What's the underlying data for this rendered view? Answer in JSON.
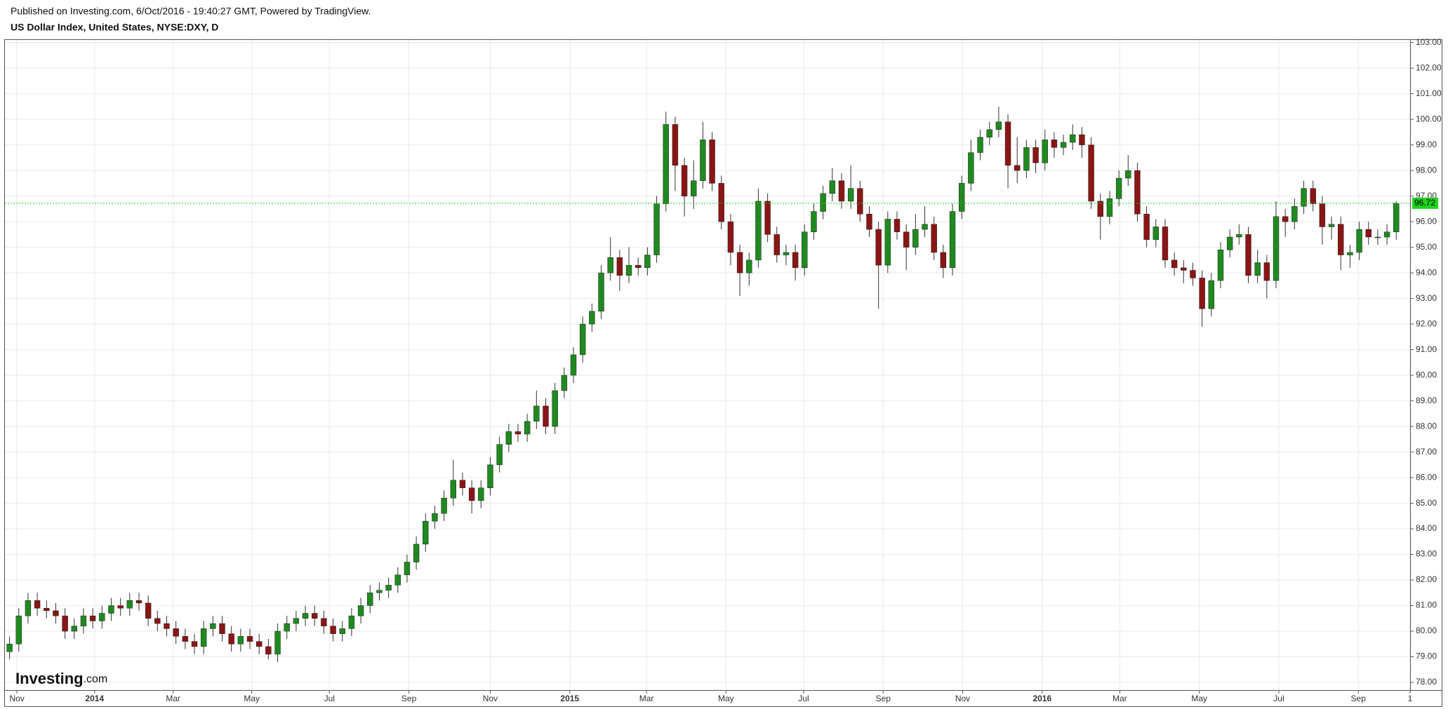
{
  "header": {
    "published": "Published on Investing.com, 6/Oct/2016 - 19:40:27 GMT, Powered by TradingView.",
    "title": "US Dollar Index, United States, NYSE:DXY, D"
  },
  "watermark": {
    "name": "Investing",
    "suffix": ".com"
  },
  "chart_data": {
    "type": "candlestick",
    "up_color": "#1f8a1f",
    "down_color": "#8b1515",
    "last_price_color": "#1ed21e",
    "grid": true,
    "xlim": [
      0,
      152
    ],
    "ylim": [
      77.7,
      103.1
    ],
    "xticks": [
      {
        "value": 1.3,
        "label": "Nov"
      },
      {
        "value": 9.7,
        "label": "2014"
      },
      {
        "value": 18.2,
        "label": "Mar"
      },
      {
        "value": 26.7,
        "label": "May"
      },
      {
        "value": 35.1,
        "label": "Jul"
      },
      {
        "value": 43.7,
        "label": "Sep"
      },
      {
        "value": 52.5,
        "label": "Nov"
      },
      {
        "value": 61.1,
        "label": "2015"
      },
      {
        "value": 69.4,
        "label": "Mar"
      },
      {
        "value": 78.0,
        "label": "May"
      },
      {
        "value": 86.4,
        "label": "Jul"
      },
      {
        "value": 95.0,
        "label": "Sep"
      },
      {
        "value": 103.6,
        "label": "Nov"
      },
      {
        "value": 112.2,
        "label": "2016"
      },
      {
        "value": 120.6,
        "label": "Mar"
      },
      {
        "value": 129.2,
        "label": "May"
      },
      {
        "value": 137.8,
        "label": "Jul"
      },
      {
        "value": 146.4,
        "label": "Sep"
      },
      {
        "value": 152.0,
        "label": "1"
      }
    ],
    "yticks": [
      {
        "value": 78,
        "label": "78.00"
      },
      {
        "value": 79,
        "label": "79.00"
      },
      {
        "value": 80,
        "label": "80.00"
      },
      {
        "value": 81,
        "label": "81.00"
      },
      {
        "value": 82,
        "label": "82.00"
      },
      {
        "value": 83,
        "label": "83.00"
      },
      {
        "value": 84,
        "label": "84.00"
      },
      {
        "value": 85,
        "label": "85.00"
      },
      {
        "value": 86,
        "label": "86.00"
      },
      {
        "value": 87,
        "label": "87.00"
      },
      {
        "value": 88,
        "label": "88.00"
      },
      {
        "value": 89,
        "label": "89.00"
      },
      {
        "value": 90,
        "label": "90.00"
      },
      {
        "value": 91,
        "label": "91.00"
      },
      {
        "value": 92,
        "label": "92.00"
      },
      {
        "value": 93,
        "label": "93.00"
      },
      {
        "value": 94,
        "label": "94.00"
      },
      {
        "value": 95,
        "label": "95.00"
      },
      {
        "value": 96,
        "label": "96.00"
      },
      {
        "value": 97,
        "label": "97.00"
      },
      {
        "value": 98,
        "label": "98.00"
      },
      {
        "value": 99,
        "label": "99.00"
      },
      {
        "value": 100,
        "label": "100.00"
      },
      {
        "value": 101,
        "label": "101.00"
      },
      {
        "value": 102,
        "label": "102.00"
      },
      {
        "value": 103,
        "label": "103.00"
      }
    ],
    "open": [
      79.2,
      79.5,
      80.6,
      81.2,
      80.9,
      80.8,
      80.6,
      80.0,
      80.2,
      80.6,
      80.4,
      80.7,
      81.0,
      80.9,
      81.2,
      81.1,
      80.5,
      80.3,
      80.1,
      79.8,
      79.6,
      79.4,
      80.1,
      80.3,
      79.9,
      79.5,
      79.8,
      79.6,
      79.4,
      79.1,
      80.0,
      80.3,
      80.5,
      80.7,
      80.5,
      80.2,
      79.9,
      80.1,
      80.6,
      81.0,
      81.5,
      81.6,
      81.8,
      82.2,
      82.7,
      83.4,
      84.3,
      84.6,
      85.2,
      85.9,
      85.6,
      85.1,
      85.6,
      86.5,
      87.3,
      87.8,
      87.7,
      88.2,
      88.8,
      88.0,
      89.4,
      90.0,
      90.8,
      92.0,
      92.5,
      94.0,
      94.6,
      93.9,
      94.3,
      94.2,
      94.7,
      96.7,
      99.8,
      98.2,
      97.0,
      97.6,
      99.2,
      97.5,
      96.0,
      94.8,
      94.0,
      94.5,
      96.8,
      95.5,
      94.7,
      94.8,
      94.2,
      95.6,
      96.4,
      97.1,
      97.6,
      96.8,
      97.3,
      96.3,
      95.7,
      94.3,
      96.1,
      95.6,
      95.0,
      95.7,
      95.9,
      94.8,
      94.2,
      96.4,
      97.5,
      98.7,
      99.3,
      99.6,
      99.9,
      98.2,
      98.0,
      98.9,
      98.3,
      99.2,
      98.9,
      99.1,
      99.4,
      99.0,
      96.8,
      96.2,
      96.9,
      97.7,
      98.0,
      96.3,
      95.3,
      95.8,
      94.5,
      94.2,
      94.1,
      93.8,
      92.6,
      93.7,
      94.9,
      95.4,
      95.5,
      93.9,
      94.4,
      93.7,
      96.2,
      96.0,
      96.6,
      97.3,
      96.7,
      95.8,
      95.9,
      94.7,
      94.8,
      95.7,
      95.4,
      95.4,
      95.6
    ],
    "high": [
      79.8,
      80.9,
      81.5,
      81.5,
      81.2,
      81.1,
      80.9,
      80.5,
      80.9,
      80.9,
      81.0,
      81.3,
      81.3,
      81.5,
      81.5,
      81.4,
      80.8,
      80.6,
      80.4,
      80.1,
      79.9,
      80.4,
      80.6,
      80.6,
      80.2,
      80.1,
      80.1,
      79.9,
      79.7,
      80.3,
      80.6,
      80.8,
      81.0,
      81.0,
      80.8,
      80.5,
      80.4,
      80.9,
      81.3,
      81.8,
      81.9,
      82.1,
      82.5,
      83.0,
      83.7,
      84.6,
      84.9,
      85.5,
      86.7,
      86.2,
      85.9,
      85.9,
      86.8,
      87.6,
      88.1,
      88.1,
      88.5,
      89.4,
      89.1,
      89.7,
      90.3,
      91.1,
      92.3,
      92.8,
      94.3,
      95.4,
      94.9,
      95.0,
      94.6,
      95.0,
      97.0,
      100.3,
      100.1,
      98.5,
      98.4,
      99.9,
      99.5,
      97.8,
      96.3,
      95.1,
      94.8,
      97.3,
      97.1,
      95.8,
      95.1,
      95.1,
      95.9,
      96.7,
      97.4,
      98.1,
      97.9,
      98.2,
      97.6,
      96.6,
      96.0,
      96.4,
      96.4,
      95.9,
      96.3,
      96.6,
      96.2,
      95.1,
      96.7,
      97.8,
      99.2,
      99.6,
      99.9,
      100.5,
      100.2,
      99.3,
      99.2,
      99.2,
      99.6,
      99.5,
      99.4,
      99.8,
      99.7,
      99.3,
      97.1,
      97.2,
      98.0,
      98.6,
      98.3,
      96.6,
      96.1,
      96.1,
      94.8,
      94.5,
      94.4,
      94.1,
      94.0,
      95.2,
      95.7,
      95.9,
      95.8,
      94.9,
      94.7,
      96.8,
      96.5,
      96.9,
      97.6,
      97.6,
      97.0,
      96.2,
      96.2,
      95.1,
      96.0,
      96.0,
      95.7,
      95.9,
      96.8
    ],
    "low": [
      78.9,
      79.2,
      80.3,
      80.6,
      80.5,
      80.3,
      79.7,
      79.7,
      79.9,
      80.1,
      80.1,
      80.4,
      80.6,
      80.6,
      80.8,
      80.2,
      80.0,
      79.8,
      79.5,
      79.3,
      79.1,
      79.1,
      79.8,
      79.6,
      79.2,
      79.2,
      79.3,
      79.1,
      78.9,
      78.8,
      79.7,
      80.0,
      80.2,
      80.2,
      79.9,
      79.6,
      79.6,
      79.8,
      80.3,
      80.7,
      81.2,
      81.3,
      81.5,
      81.9,
      82.4,
      83.1,
      84.0,
      84.3,
      84.9,
      85.3,
      84.6,
      84.8,
      85.3,
      86.2,
      87.0,
      87.4,
      87.4,
      87.9,
      87.7,
      87.7,
      89.1,
      89.7,
      90.5,
      91.7,
      92.2,
      93.7,
      93.3,
      93.6,
      93.9,
      93.9,
      94.4,
      96.4,
      97.2,
      96.2,
      96.5,
      97.3,
      97.2,
      95.7,
      94.3,
      93.1,
      93.5,
      94.2,
      95.2,
      94.4,
      94.3,
      93.7,
      93.9,
      95.3,
      96.1,
      96.8,
      96.5,
      96.5,
      96.0,
      95.4,
      92.6,
      94.0,
      95.3,
      94.1,
      94.7,
      95.4,
      94.5,
      93.8,
      93.9,
      96.1,
      97.2,
      98.4,
      99.0,
      99.3,
      97.3,
      97.5,
      97.7,
      97.9,
      98.0,
      98.5,
      98.6,
      98.8,
      98.5,
      96.5,
      95.3,
      95.9,
      96.6,
      97.4,
      96.0,
      95.0,
      95.0,
      94.2,
      93.9,
      93.6,
      93.5,
      91.9,
      92.3,
      93.4,
      94.6,
      95.1,
      93.6,
      93.6,
      93.0,
      93.4,
      95.4,
      95.7,
      96.3,
      96.4,
      95.1,
      95.3,
      94.1,
      94.2,
      94.5,
      95.1,
      95.1,
      95.1,
      95.3
    ],
    "close": [
      79.5,
      80.6,
      81.2,
      80.9,
      80.8,
      80.6,
      80.0,
      80.2,
      80.6,
      80.4,
      80.7,
      81.0,
      80.9,
      81.2,
      81.1,
      80.5,
      80.3,
      80.1,
      79.8,
      79.6,
      79.4,
      80.1,
      80.3,
      79.9,
      79.5,
      79.8,
      79.6,
      79.4,
      79.1,
      80.0,
      80.3,
      80.5,
      80.7,
      80.5,
      80.2,
      79.9,
      80.1,
      80.6,
      81.0,
      81.5,
      81.6,
      81.8,
      82.2,
      82.7,
      83.4,
      84.3,
      84.6,
      85.2,
      85.9,
      85.6,
      85.1,
      85.6,
      86.5,
      87.3,
      87.8,
      87.7,
      88.2,
      88.8,
      88.0,
      89.4,
      90.0,
      90.8,
      92.0,
      92.5,
      94.0,
      94.6,
      93.9,
      94.3,
      94.2,
      94.7,
      96.7,
      99.8,
      98.2,
      97.0,
      97.6,
      99.2,
      97.5,
      96.0,
      94.8,
      94.0,
      94.5,
      96.8,
      95.5,
      94.7,
      94.8,
      94.2,
      95.6,
      96.4,
      97.1,
      97.6,
      96.8,
      97.3,
      96.3,
      95.7,
      94.3,
      96.1,
      95.6,
      95.0,
      95.7,
      95.9,
      94.8,
      94.2,
      96.4,
      97.5,
      98.7,
      99.3,
      99.6,
      99.9,
      98.2,
      98.0,
      98.9,
      98.3,
      99.2,
      98.9,
      99.1,
      99.4,
      99.0,
      96.8,
      96.2,
      96.9,
      97.7,
      98.0,
      96.3,
      95.3,
      95.8,
      94.5,
      94.2,
      94.1,
      93.8,
      92.6,
      93.7,
      94.9,
      95.4,
      95.5,
      93.9,
      94.4,
      93.7,
      96.2,
      96.0,
      96.6,
      97.3,
      96.7,
      95.8,
      95.9,
      94.7,
      94.8,
      95.7,
      95.4,
      95.4,
      95.6,
      96.72
    ]
  }
}
